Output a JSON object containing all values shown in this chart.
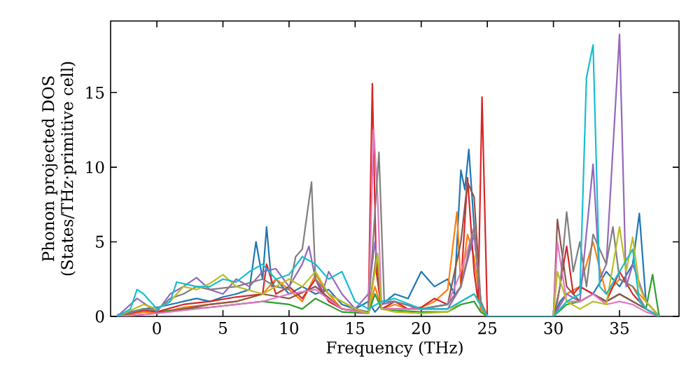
{
  "chart_data": {
    "type": "line",
    "xlabel": "Frequency (THz)",
    "ylabel": "Phonon projected DOS (States/THz·primitive cell)",
    "xlim": [
      -3.5,
      39.5
    ],
    "ylim": [
      0,
      19.8
    ],
    "xticks": [
      0,
      5,
      10,
      15,
      20,
      25,
      30,
      35
    ],
    "yticks": [
      0,
      5,
      10,
      15
    ],
    "series": [
      {
        "color": "#1f77b4",
        "x": [
          -3,
          -2,
          -1,
          0,
          1,
          2,
          3,
          4,
          5,
          6,
          7,
          7.5,
          8,
          8.3,
          8.7,
          9,
          10,
          11,
          12,
          13,
          14,
          15,
          16,
          16.5,
          17,
          18,
          19,
          20,
          20.5,
          21,
          22,
          22.5,
          23,
          23.3,
          23.6,
          24,
          24.5,
          25,
          30,
          30.5,
          31,
          32,
          33,
          34,
          35,
          36,
          36.5,
          37,
          38
        ],
        "values": [
          0.1,
          0.3,
          0.5,
          0.6,
          0.8,
          1.0,
          1.2,
          1.0,
          1.3,
          1.5,
          1.8,
          5.0,
          2.5,
          6.0,
          2.0,
          2.5,
          1.5,
          2.0,
          1.5,
          1.8,
          0.8,
          0.5,
          1.0,
          0.3,
          0.8,
          1.5,
          1.2,
          3.0,
          2.5,
          2.0,
          2.5,
          1.5,
          9.8,
          8.5,
          11.2,
          6.0,
          0.5,
          0,
          0,
          1.0,
          1.5,
          2.0,
          1.5,
          3.0,
          2.0,
          3.5,
          6.9,
          1.0,
          0
        ]
      },
      {
        "color": "#ff7f0e",
        "x": [
          -3,
          -1,
          0,
          2,
          4,
          6,
          8,
          9,
          10,
          11,
          12,
          13,
          14,
          16,
          16.5,
          17,
          18,
          19,
          20,
          21,
          22,
          22.7,
          23,
          23.5,
          24,
          24.5,
          25,
          30,
          31,
          32,
          33,
          34,
          35,
          36,
          37,
          38
        ],
        "values": [
          0,
          0.3,
          0.2,
          0.6,
          0.8,
          1.0,
          1.5,
          2.5,
          1.8,
          1.0,
          2.8,
          1.5,
          0.5,
          0.3,
          2.0,
          0.5,
          0.8,
          0.5,
          0.6,
          1.0,
          1.8,
          7.0,
          2.0,
          5.5,
          4.0,
          0.5,
          0,
          0,
          1.5,
          2.0,
          5.0,
          1.5,
          2.5,
          2.0,
          1.0,
          0
        ]
      },
      {
        "color": "#2ca02c",
        "x": [
          -3,
          -1,
          0,
          2,
          4,
          6,
          8,
          10,
          11,
          12,
          14,
          16,
          16.5,
          17,
          18,
          20,
          22,
          23,
          24,
          24.5,
          25,
          30,
          31,
          32,
          33,
          34,
          35,
          36,
          37,
          37.5,
          38
        ],
        "values": [
          0,
          0.5,
          0.3,
          0.5,
          0.6,
          0.8,
          1.0,
          0.8,
          0.5,
          1.2,
          0.3,
          0.2,
          1.5,
          0.5,
          0.4,
          0.3,
          0.3,
          0.8,
          1.0,
          0.3,
          0,
          0,
          0.8,
          1.0,
          1.5,
          1.0,
          1.5,
          1.0,
          0.5,
          2.8,
          0
        ]
      },
      {
        "color": "#d62728",
        "x": [
          -3,
          -1,
          0,
          2,
          4,
          6,
          8,
          8.3,
          9,
          10,
          11,
          12,
          13,
          14,
          16,
          16.3,
          16.6,
          17,
          18,
          19,
          20,
          21,
          22,
          23,
          23.5,
          24,
          24.3,
          24.6,
          25,
          30,
          30.3,
          31,
          31.5,
          32,
          33,
          34,
          35,
          36,
          37,
          38
        ],
        "values": [
          0,
          0.4,
          0.3,
          0.8,
          1.0,
          1.3,
          1.5,
          3.5,
          1.5,
          2.0,
          1.2,
          2.5,
          1.0,
          0.5,
          0.3,
          15.6,
          3.0,
          0.5,
          1.0,
          0.5,
          0.6,
          1.2,
          0.8,
          2.0,
          9.3,
          3.0,
          1.0,
          14.7,
          0,
          0,
          1.0,
          4.7,
          1.5,
          2.0,
          1.5,
          1.0,
          3.0,
          1.5,
          0.5,
          0
        ]
      },
      {
        "color": "#9467bd",
        "x": [
          -3,
          -1.5,
          0,
          1,
          2,
          3,
          4,
          5,
          6,
          7,
          8,
          9,
          10,
          11,
          11.5,
          12,
          12.5,
          13,
          14,
          15,
          16,
          16.5,
          17,
          18,
          20,
          22,
          23,
          24,
          24.5,
          25,
          30,
          31,
          32,
          33,
          33.5,
          34,
          35,
          35.5,
          36,
          37,
          38
        ],
        "values": [
          0,
          1.2,
          0.3,
          1.5,
          2.0,
          2.6,
          1.8,
          1.5,
          2.5,
          2.0,
          3.0,
          3.2,
          2.0,
          3.5,
          4.7,
          2.5,
          1.5,
          3.0,
          1.5,
          0.5,
          1.5,
          5.0,
          0.8,
          1.0,
          0.5,
          0.5,
          2.0,
          5.5,
          1.0,
          0,
          0,
          1.5,
          1.0,
          10.2,
          2.5,
          3.5,
          18.9,
          2.0,
          3.5,
          1.0,
          0
        ]
      },
      {
        "color": "#8c564b",
        "x": [
          -3,
          0,
          2,
          4,
          6,
          8,
          10,
          12,
          14,
          16,
          16.6,
          17,
          18,
          20,
          22,
          23,
          23.5,
          24,
          24.5,
          25,
          30,
          30.3,
          31,
          32,
          33,
          34,
          35,
          36,
          37,
          38
        ],
        "values": [
          0,
          0.2,
          0.5,
          0.8,
          1.0,
          1.5,
          1.2,
          2.0,
          0.5,
          0.2,
          4.0,
          0.5,
          0.5,
          0.5,
          0.8,
          5.0,
          9.0,
          8.0,
          1.0,
          0,
          0,
          6.5,
          2.0,
          1.0,
          1.5,
          1.0,
          1.5,
          1.0,
          0.5,
          0
        ]
      },
      {
        "color": "#e377c2",
        "x": [
          -3,
          0,
          2,
          4,
          6,
          8,
          10,
          12,
          14,
          16,
          16.4,
          16.7,
          17,
          18,
          20,
          22,
          23,
          23.7,
          24,
          24.5,
          25,
          30,
          30.3,
          31,
          32,
          33,
          34,
          35,
          36,
          37,
          38
        ],
        "values": [
          0,
          0.2,
          0.4,
          0.6,
          0.8,
          1.0,
          1.5,
          1.8,
          0.5,
          0.2,
          12.5,
          8.0,
          0.5,
          0.5,
          0.5,
          0.8,
          3.0,
          5.0,
          6.0,
          1.0,
          0,
          0,
          5.0,
          1.0,
          1.0,
          1.5,
          0.8,
          1.0,
          0.8,
          0.3,
          0
        ]
      },
      {
        "color": "#7f7f7f",
        "x": [
          -3,
          -1,
          0,
          1,
          2,
          3,
          4,
          6,
          8,
          9,
          10,
          10.5,
          11,
          11.7,
          12,
          13,
          14,
          15,
          16,
          16.8,
          17.2,
          18,
          20,
          22,
          23,
          24,
          24.5,
          25,
          30,
          30.5,
          31,
          31.5,
          32,
          32.5,
          33,
          34,
          34.5,
          35,
          36,
          37,
          38
        ],
        "values": [
          0,
          0.5,
          0.4,
          1.2,
          1.5,
          2.0,
          1.8,
          2.0,
          2.5,
          2.0,
          1.8,
          4.0,
          4.5,
          9.0,
          2.5,
          1.5,
          1.0,
          0.5,
          0.3,
          11.0,
          1.0,
          1.0,
          0.5,
          0.8,
          2.0,
          6.0,
          1.0,
          0,
          0,
          2.0,
          7.0,
          3.0,
          5.0,
          2.0,
          5.5,
          3.5,
          6.0,
          2.5,
          2.0,
          0.5,
          0
        ]
      },
      {
        "color": "#bcbd22",
        "x": [
          -3,
          -1,
          0,
          1,
          2,
          3,
          4,
          5,
          6,
          8,
          10,
          11,
          12,
          13,
          14,
          15,
          16,
          16.7,
          17,
          18,
          20,
          22,
          23,
          24,
          25,
          30,
          30.3,
          31,
          32,
          33,
          34,
          35,
          35.5,
          36,
          36.5,
          37,
          38
        ],
        "values": [
          0,
          0.8,
          0.5,
          1.0,
          2.0,
          1.8,
          2.2,
          2.8,
          2.0,
          1.5,
          2.5,
          2.0,
          3.0,
          1.5,
          1.0,
          0.5,
          0.2,
          4.2,
          0.5,
          0.3,
          0.2,
          0.3,
          1.0,
          1.5,
          0,
          0,
          3.0,
          1.0,
          0.5,
          1.0,
          0.8,
          6.0,
          3.0,
          5.3,
          2.0,
          1.0,
          0
        ]
      },
      {
        "color": "#17becf",
        "x": [
          -3,
          -2,
          -1.5,
          -1,
          0,
          1,
          1.5,
          2,
          3,
          4,
          5,
          6,
          7,
          8,
          9,
          10,
          11,
          12,
          13,
          14,
          15,
          16,
          17,
          18,
          20,
          22,
          23,
          24,
          25,
          30,
          31,
          32,
          32.5,
          33,
          33.5,
          34,
          35,
          36,
          36.5,
          37,
          38
        ],
        "values": [
          0,
          0.5,
          1.8,
          1.5,
          0.5,
          1.0,
          2.3,
          2.2,
          2.0,
          2.0,
          2.5,
          2.3,
          3.0,
          3.5,
          2.5,
          2.8,
          4.0,
          3.5,
          2.5,
          3.0,
          1.0,
          0.5,
          1.0,
          1.2,
          0.5,
          0.5,
          1.0,
          1.5,
          0,
          0,
          1.0,
          1.5,
          16.0,
          18.2,
          2.0,
          1.5,
          3.0,
          4.5,
          1.0,
          0.5,
          0
        ]
      }
    ]
  }
}
